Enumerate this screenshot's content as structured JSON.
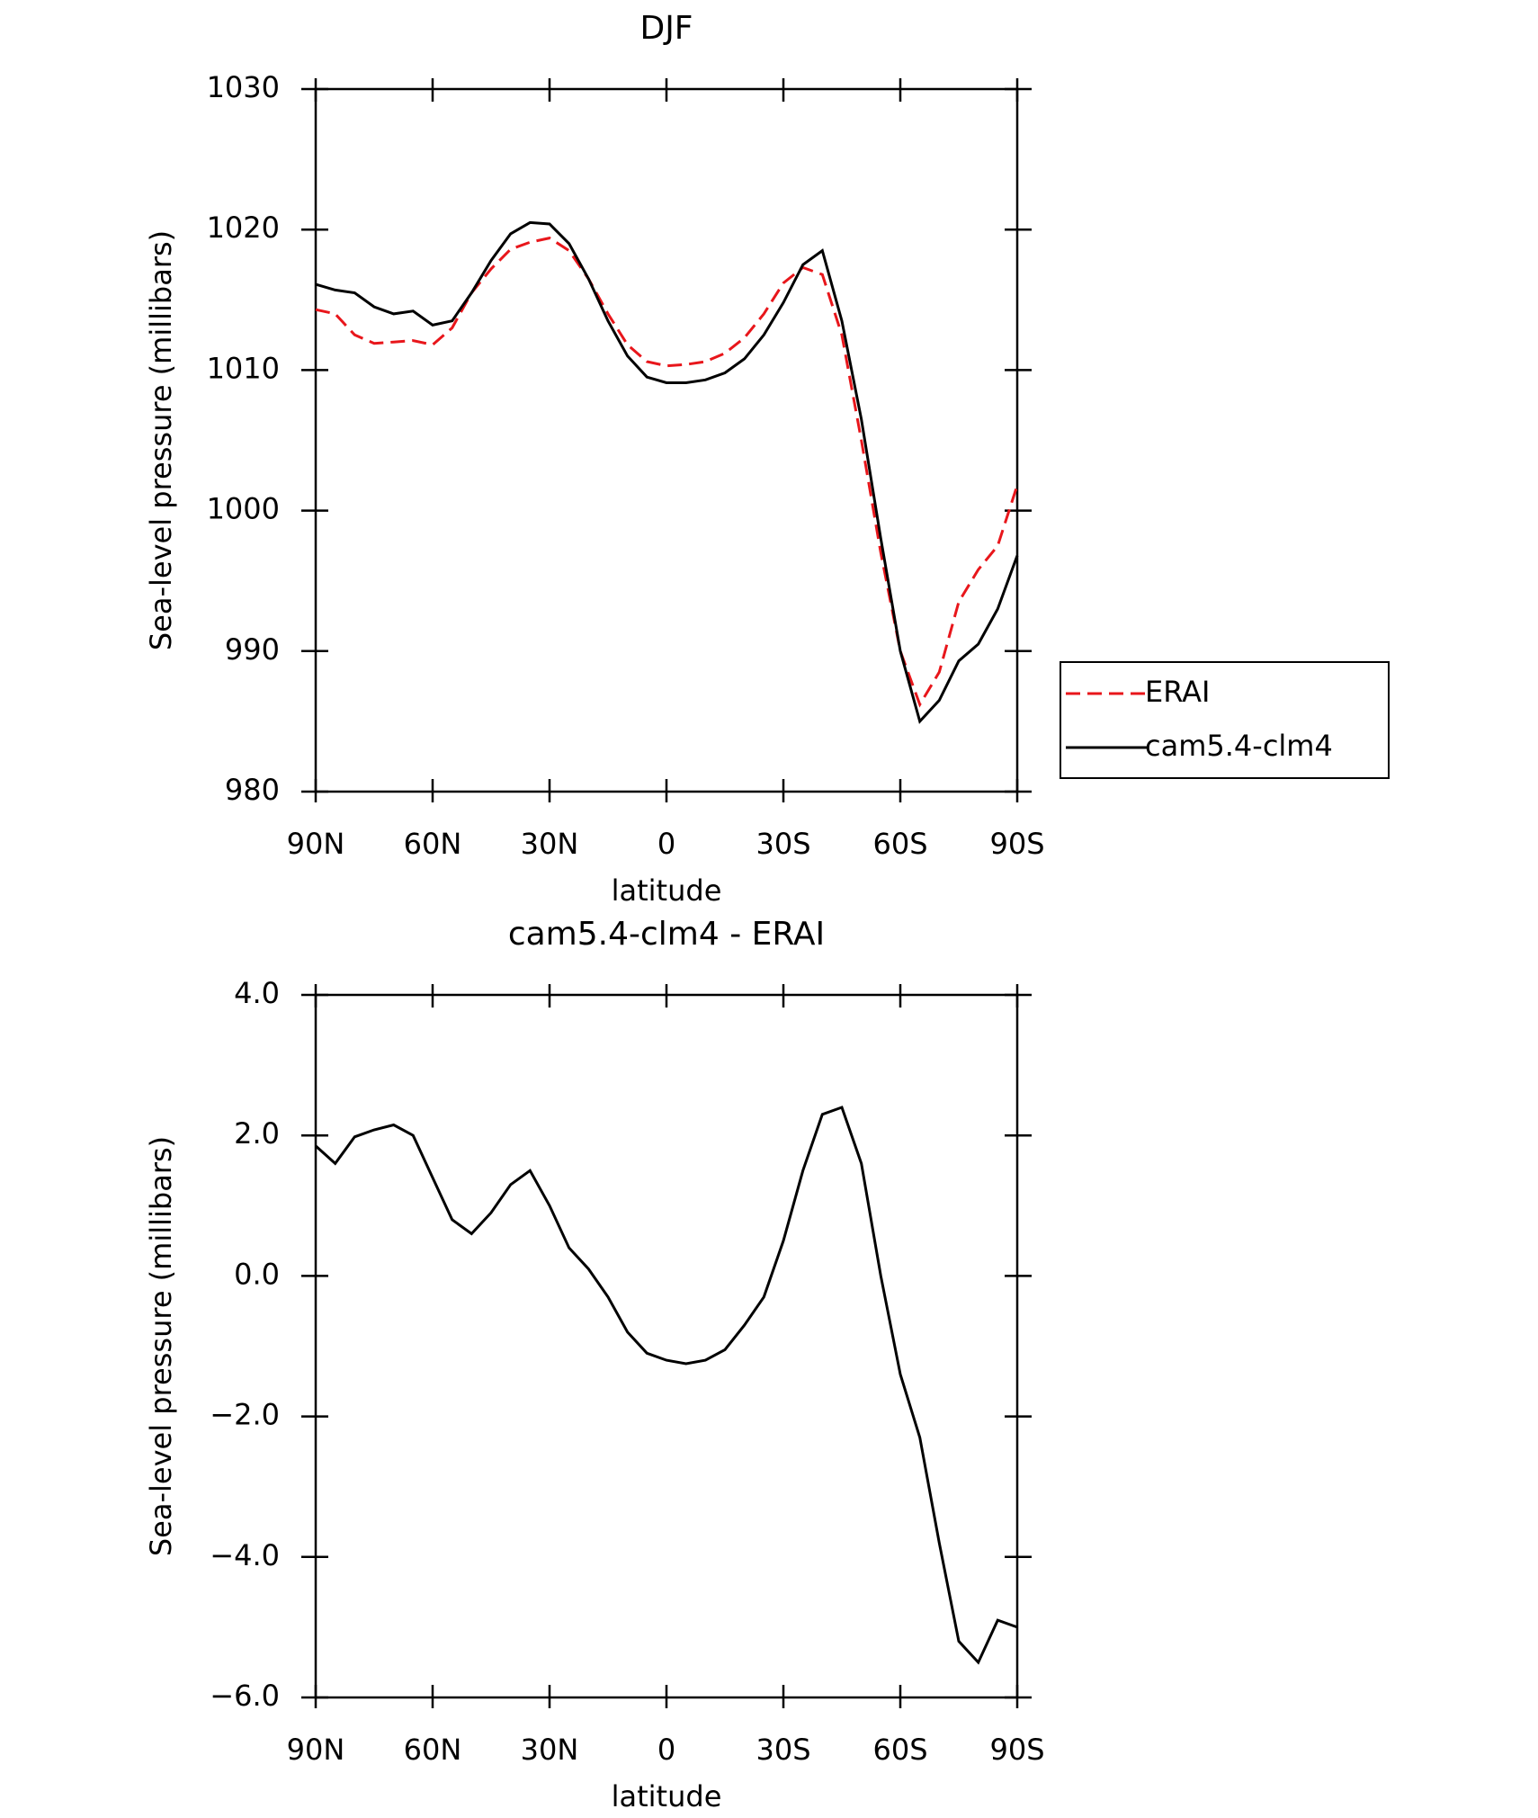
{
  "chart_data": [
    {
      "type": "line",
      "title": "DJF",
      "xlabel": "latitude",
      "ylabel": "Sea-level pressure (millibars)",
      "x": [
        90,
        85,
        80,
        75,
        70,
        65,
        60,
        55,
        50,
        45,
        40,
        35,
        30,
        25,
        20,
        15,
        10,
        5,
        0,
        -5,
        -10,
        -15,
        -20,
        -25,
        -30,
        -35,
        -40,
        -45,
        -50,
        -55,
        -60,
        -65,
        -70,
        -75,
        -80,
        -85,
        -90
      ],
      "xlim": [
        90,
        -90
      ],
      "xticks": [
        {
          "value": 90,
          "label": "90N"
        },
        {
          "value": 60,
          "label": "60N"
        },
        {
          "value": 30,
          "label": "30N"
        },
        0,
        {
          "value": -30,
          "label": "30S"
        },
        {
          "value": -60,
          "label": "60S"
        },
        {
          "value": -90,
          "label": "90S"
        }
      ],
      "ylim": [
        980,
        1030
      ],
      "yticks": [
        980,
        990,
        1000,
        1010,
        1020,
        1030
      ],
      "series": [
        {
          "name": "ERAI",
          "color": "#e8161b",
          "dashed": true,
          "values": [
            1014.3,
            1014.0,
            1012.5,
            1011.9,
            1012.0,
            1012.1,
            1011.8,
            1013.0,
            1015.5,
            1017.2,
            1018.6,
            1019.1,
            1019.4,
            1018.5,
            1016.5,
            1014.0,
            1011.8,
            1010.6,
            1010.3,
            1010.4,
            1010.6,
            1011.2,
            1012.3,
            1014.0,
            1016.2,
            1017.3,
            1016.8,
            1012.5,
            1005.0,
            997.0,
            990.0,
            986.2,
            988.5,
            993.5,
            995.8,
            997.5,
            1001.8
          ]
        },
        {
          "name": "cam5.4-clm4",
          "color": "#000000",
          "dashed": false,
          "values": [
            1016.1,
            1015.7,
            1015.5,
            1014.5,
            1014.0,
            1014.2,
            1013.2,
            1013.5,
            1015.5,
            1017.8,
            1019.7,
            1020.5,
            1020.4,
            1019.0,
            1016.5,
            1013.5,
            1011.0,
            1009.5,
            1009.1,
            1009.1,
            1009.3,
            1009.8,
            1010.8,
            1012.5,
            1014.8,
            1017.5,
            1018.5,
            1013.5,
            1006.5,
            998.0,
            990.0,
            985.0,
            986.5,
            989.3,
            990.5,
            993.0,
            996.8
          ]
        }
      ]
    },
    {
      "type": "line",
      "title": "cam5.4-clm4 - ERAI",
      "xlabel": "latitude",
      "ylabel": "Sea-level pressure (millibars)",
      "x": [
        90,
        85,
        80,
        75,
        70,
        65,
        60,
        55,
        50,
        45,
        40,
        35,
        30,
        25,
        20,
        15,
        10,
        5,
        0,
        -5,
        -10,
        -15,
        -20,
        -25,
        -30,
        -35,
        -40,
        -45,
        -50,
        -55,
        -60,
        -65,
        -70,
        -75,
        -80,
        -85,
        -90
      ],
      "xlim": [
        90,
        -90
      ],
      "xticks": [
        {
          "value": 90,
          "label": "90N"
        },
        {
          "value": 60,
          "label": "60N"
        },
        {
          "value": 30,
          "label": "30N"
        },
        0,
        {
          "value": -30,
          "label": "30S"
        },
        {
          "value": -60,
          "label": "60S"
        },
        {
          "value": -90,
          "label": "90S"
        }
      ],
      "ylim": [
        -6,
        4
      ],
      "yticks": [
        {
          "value": -6,
          "label": "−6.0"
        },
        {
          "value": -4,
          "label": "−4.0"
        },
        {
          "value": -2,
          "label": "−2.0"
        },
        {
          "value": 0,
          "label": "0.0"
        },
        {
          "value": 2,
          "label": "2.0"
        },
        {
          "value": 4,
          "label": "4.0"
        }
      ],
      "series": [
        {
          "color": "#000000",
          "dashed": false,
          "values": [
            1.85,
            1.6,
            1.98,
            2.08,
            2.15,
            2.0,
            1.4,
            0.8,
            0.6,
            0.9,
            1.3,
            1.5,
            1.0,
            0.4,
            0.1,
            -0.3,
            -0.8,
            -1.1,
            -1.2,
            -1.25,
            -1.2,
            -1.05,
            -0.7,
            -0.3,
            0.5,
            1.5,
            2.3,
            2.4,
            1.6,
            0.0,
            -1.4,
            -2.3,
            -3.8,
            -5.2,
            -5.5,
            -4.9,
            -5.0
          ]
        }
      ]
    }
  ]
}
